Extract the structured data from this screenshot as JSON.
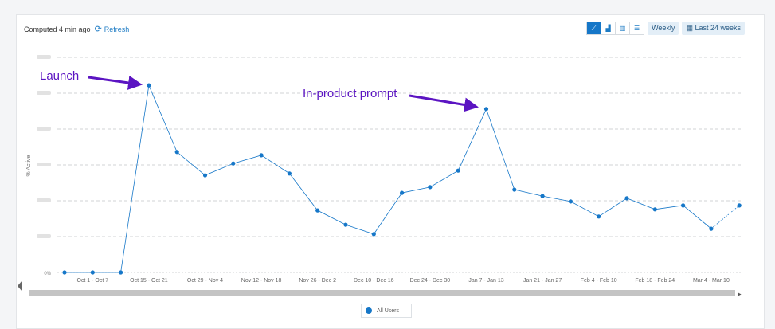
{
  "header": {
    "computed": "Computed 4 min ago",
    "refresh": "Refresh"
  },
  "controls": {
    "chart_types": [
      "line-chart-icon",
      "area-chart-icon",
      "bar-chart-icon",
      "table-icon"
    ],
    "selected": "line-chart-icon",
    "interval": "Weekly",
    "range": "Last 24 weeks"
  },
  "legend": {
    "label": "All Users",
    "color": "#1677c8"
  },
  "annotations": [
    {
      "text": "Launch",
      "point_index": 3
    },
    {
      "text": "In-product prompt",
      "point_index": 15
    }
  ],
  "annotation_color": "#5b14c2",
  "chart_data": {
    "type": "line",
    "ylabel": "% Active",
    "y_tick_labels_visible": [
      "0%"
    ],
    "y_gridlines": 7,
    "x_tick_labels": [
      "Oct 1 - Oct 7",
      "Oct 15 - Oct 21",
      "Oct 29 - Nov 4",
      "Nov 12 - Nov 18",
      "Nov 26 - Dec 2",
      "Dec 10 - Dec 16",
      "Dec 24 - Dec 30",
      "Jan 7 - Jan 13",
      "Jan 21 - Jan 27",
      "Feb 4 - Feb 10",
      "Feb 18 - Feb 24",
      "Mar 4 - Mar 10"
    ],
    "series": [
      {
        "name": "All Users",
        "color": "#1677c8",
        "values": [
          0,
          0,
          0,
          5.22,
          3.36,
          2.71,
          3.04,
          3.27,
          2.76,
          1.73,
          1.33,
          1.07,
          2.22,
          2.38,
          2.84,
          4.56,
          2.31,
          2.13,
          1.98,
          1.56,
          2.07,
          1.76,
          1.87,
          1.22,
          1.87
        ]
      }
    ],
    "last_point_incomplete": true,
    "grid": true
  }
}
